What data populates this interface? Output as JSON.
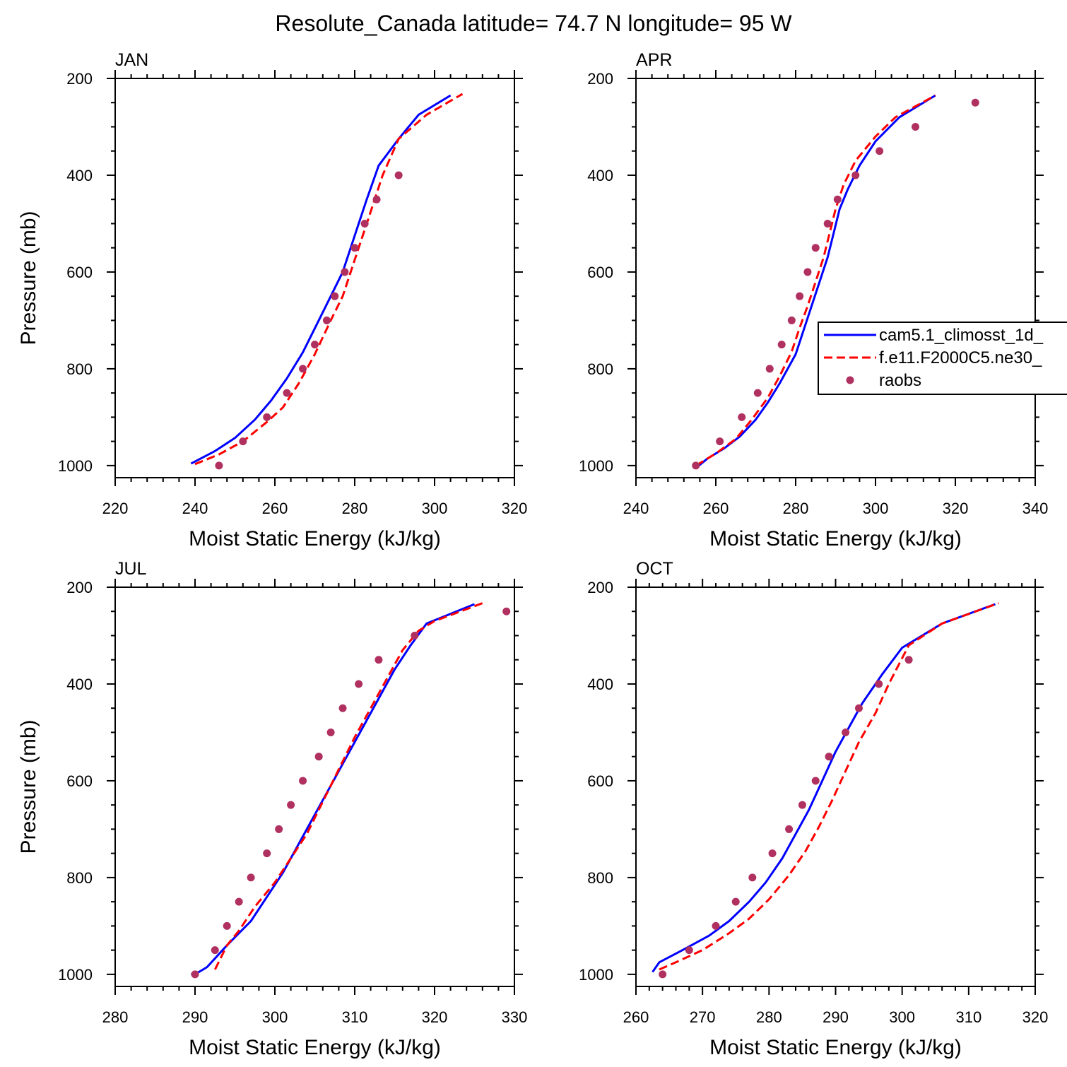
{
  "figure_title": "Resolute_Canada  latitude= 74.7 N longitude= 95 W",
  "colors": {
    "model1": "#0000ff",
    "model2": "#ff0000",
    "obs": "#b03060"
  },
  "legend": {
    "placement": "right of APR panel, partially clipped",
    "entries": [
      "cam5.1_climosst_1d_",
      "f.e11.F2000C5.ne30_",
      "raobs"
    ]
  },
  "chart_data": [
    {
      "type": "line",
      "title": "JAN",
      "xlabel": "Moist Static Energy (kJ/kg)",
      "ylabel": "Pressure (mb)",
      "xlim": [
        220,
        320
      ],
      "ylim": [
        1025,
        200
      ],
      "x_ticks": [
        220,
        240,
        260,
        280,
        300,
        320
      ],
      "y_ticks": [
        200,
        400,
        600,
        800,
        1000
      ],
      "series": [
        {
          "type": "line",
          "style": "solid",
          "color": "#0000ff",
          "points": [
            [
              239,
              996
            ],
            [
              245,
              970
            ],
            [
              250,
              943
            ],
            [
              255,
              905
            ],
            [
              259,
              866
            ],
            [
              263,
              820
            ],
            [
              267,
              766
            ],
            [
              271,
              700
            ],
            [
              274,
              650
            ],
            [
              277,
              600
            ],
            [
              279,
              550
            ],
            [
              281,
              500
            ],
            [
              283,
              450
            ],
            [
              286,
              380
            ],
            [
              291,
              325
            ],
            [
              296,
              275
            ],
            [
              304,
              235
            ]
          ]
        },
        {
          "type": "line",
          "style": "dashed",
          "color": "#ff0000",
          "points": [
            [
              240,
              997
            ],
            [
              246,
              977
            ],
            [
              252,
              950
            ],
            [
              258,
              910
            ],
            [
              262,
              880
            ],
            [
              266,
              830
            ],
            [
              270,
              770
            ],
            [
              274,
              700
            ],
            [
              277,
              650
            ],
            [
              279,
              600
            ],
            [
              281,
              550
            ],
            [
              283,
              500
            ],
            [
              285,
              450
            ],
            [
              287,
              400
            ],
            [
              291,
              325
            ],
            [
              298,
              275
            ],
            [
              307,
              232
            ]
          ]
        },
        {
          "type": "scatter",
          "color": "#b03060",
          "points": [
            [
              246,
              1000
            ],
            [
              252,
              950
            ],
            [
              258,
              900
            ],
            [
              263,
              850
            ],
            [
              267,
              800
            ],
            [
              270,
              750
            ],
            [
              273,
              700
            ],
            [
              275,
              650
            ],
            [
              277.5,
              600
            ],
            [
              280,
              550
            ],
            [
              282.5,
              500
            ],
            [
              285.5,
              450
            ],
            [
              291,
              400
            ]
          ]
        }
      ]
    },
    {
      "type": "line",
      "title": "APR",
      "xlabel": "Moist Static Energy (kJ/kg)",
      "ylabel": "",
      "xlim": [
        240,
        340
      ],
      "ylim": [
        1025,
        200
      ],
      "x_ticks": [
        240,
        260,
        280,
        300,
        320,
        340
      ],
      "y_ticks": [
        200,
        400,
        600,
        800,
        1000
      ],
      "series": [
        {
          "type": "line",
          "style": "solid",
          "color": "#0000ff",
          "points": [
            [
              255,
              1005
            ],
            [
              258,
              985
            ],
            [
              262,
              965
            ],
            [
              266,
              940
            ],
            [
              270,
              905
            ],
            [
              273,
              870
            ],
            [
              276,
              830
            ],
            [
              280,
              770
            ],
            [
              282,
              720
            ],
            [
              284,
              670
            ],
            [
              286,
              620
            ],
            [
              288,
              570
            ],
            [
              289.5,
              520
            ],
            [
              291,
              470
            ],
            [
              293,
              430
            ],
            [
              296,
              380
            ],
            [
              300,
              330
            ],
            [
              306,
              280
            ],
            [
              315,
              235
            ]
          ]
        },
        {
          "type": "line",
          "style": "dashed",
          "color": "#ff0000",
          "points": [
            [
              255,
              1000
            ],
            [
              260,
              975
            ],
            [
              265,
              945
            ],
            [
              269,
              905
            ],
            [
              273,
              860
            ],
            [
              276,
              815
            ],
            [
              279,
              765
            ],
            [
              281,
              715
            ],
            [
              283,
              670
            ],
            [
              285,
              620
            ],
            [
              287,
              570
            ],
            [
              288.5,
              520
            ],
            [
              290,
              470
            ],
            [
              292,
              420
            ],
            [
              295,
              370
            ],
            [
              300,
              320
            ],
            [
              305,
              280
            ],
            [
              315,
              235
            ]
          ]
        },
        {
          "type": "scatter",
          "color": "#b03060",
          "points": [
            [
              255,
              1000
            ],
            [
              261,
              950
            ],
            [
              266.5,
              900
            ],
            [
              270.5,
              850
            ],
            [
              273.5,
              800
            ],
            [
              276.5,
              750
            ],
            [
              279,
              700
            ],
            [
              281,
              650
            ],
            [
              283,
              600
            ],
            [
              285,
              550
            ],
            [
              288,
              500
            ],
            [
              290.5,
              450
            ],
            [
              295,
              400
            ],
            [
              301,
              350
            ],
            [
              310,
              300
            ],
            [
              325,
              250
            ]
          ]
        }
      ]
    },
    {
      "type": "line",
      "title": "JUL",
      "xlabel": "Moist Static Energy (kJ/kg)",
      "ylabel": "Pressure (mb)",
      "xlim": [
        280,
        330
      ],
      "ylim": [
        1025,
        200
      ],
      "x_ticks": [
        280,
        290,
        300,
        310,
        320,
        330
      ],
      "y_ticks": [
        200,
        400,
        600,
        800,
        1000
      ],
      "series": [
        {
          "type": "line",
          "style": "solid",
          "color": "#0000ff",
          "points": [
            [
              289.5,
              1000
            ],
            [
              290.5,
              995
            ],
            [
              291.5,
              985
            ],
            [
              294,
              940
            ],
            [
              297,
              890
            ],
            [
              299,
              840
            ],
            [
              301,
              790
            ],
            [
              303,
              730
            ],
            [
              305,
              670
            ],
            [
              307,
              610
            ],
            [
              309,
              550
            ],
            [
              311,
              490
            ],
            [
              313,
              430
            ],
            [
              315,
              370
            ],
            [
              317,
              320
            ],
            [
              319,
              275
            ],
            [
              325,
              235
            ]
          ]
        },
        {
          "type": "line",
          "style": "dashed",
          "color": "#ff0000",
          "points": [
            [
              292.5,
              990
            ],
            [
              294,
              940
            ],
            [
              295.5,
              910
            ],
            [
              297.5,
              860
            ],
            [
              300,
              810
            ],
            [
              302,
              760
            ],
            [
              304,
              710
            ],
            [
              305.5,
              660
            ],
            [
              307,
              610
            ],
            [
              308.5,
              560
            ],
            [
              310,
              510
            ],
            [
              312,
              450
            ],
            [
              314,
              390
            ],
            [
              316,
              330
            ],
            [
              318,
              290
            ],
            [
              320,
              270
            ],
            [
              326,
              233
            ]
          ]
        },
        {
          "type": "scatter",
          "color": "#b03060",
          "points": [
            [
              290,
              1000
            ],
            [
              292.5,
              950
            ],
            [
              294,
              900
            ],
            [
              295.5,
              850
            ],
            [
              297,
              800
            ],
            [
              299,
              750
            ],
            [
              300.5,
              700
            ],
            [
              302,
              650
            ],
            [
              303.5,
              600
            ],
            [
              305.5,
              550
            ],
            [
              307,
              500
            ],
            [
              308.5,
              450
            ],
            [
              310.5,
              400
            ],
            [
              313,
              350
            ],
            [
              317.5,
              300
            ],
            [
              329,
              250
            ]
          ]
        }
      ]
    },
    {
      "type": "line",
      "title": "OCT",
      "xlabel": "Moist Static Energy (kJ/kg)",
      "ylabel": "",
      "xlim": [
        260,
        320
      ],
      "ylim": [
        1025,
        200
      ],
      "x_ticks": [
        260,
        270,
        280,
        290,
        300,
        310,
        320
      ],
      "y_ticks": [
        200,
        400,
        600,
        800,
        1000
      ],
      "series": [
        {
          "type": "line",
          "style": "solid",
          "color": "#0000ff",
          "points": [
            [
              262.5,
              995
            ],
            [
              263.5,
              975
            ],
            [
              267,
              950
            ],
            [
              271,
              920
            ],
            [
              274,
              890
            ],
            [
              277,
              850
            ],
            [
              279.5,
              810
            ],
            [
              282,
              760
            ],
            [
              284,
              710
            ],
            [
              286,
              660
            ],
            [
              288,
              600
            ],
            [
              290,
              540
            ],
            [
              292,
              490
            ],
            [
              294,
              440
            ],
            [
              297,
              380
            ],
            [
              300,
              325
            ],
            [
              306,
              275
            ],
            [
              314,
              235
            ]
          ]
        },
        {
          "type": "line",
          "style": "dashed",
          "color": "#ff0000",
          "points": [
            [
              263.5,
              990
            ],
            [
              266,
              975
            ],
            [
              270,
              950
            ],
            [
              274,
              915
            ],
            [
              277,
              885
            ],
            [
              280,
              845
            ],
            [
              283,
              795
            ],
            [
              285.5,
              745
            ],
            [
              287.5,
              695
            ],
            [
              289.5,
              640
            ],
            [
              291.5,
              580
            ],
            [
              293.5,
              520
            ],
            [
              296,
              460
            ],
            [
              298,
              400
            ],
            [
              301,
              320
            ],
            [
              306,
              275
            ],
            [
              314.5,
              233
            ]
          ]
        },
        {
          "type": "scatter",
          "color": "#b03060",
          "points": [
            [
              264,
              1000
            ],
            [
              268,
              950
            ],
            [
              272,
              900
            ],
            [
              275,
              850
            ],
            [
              277.5,
              800
            ],
            [
              280.5,
              750
            ],
            [
              283,
              700
            ],
            [
              285,
              650
            ],
            [
              287,
              600
            ],
            [
              289,
              550
            ],
            [
              291.5,
              500
            ],
            [
              293.5,
              450
            ],
            [
              296.5,
              400
            ],
            [
              301,
              350
            ]
          ]
        }
      ]
    }
  ]
}
